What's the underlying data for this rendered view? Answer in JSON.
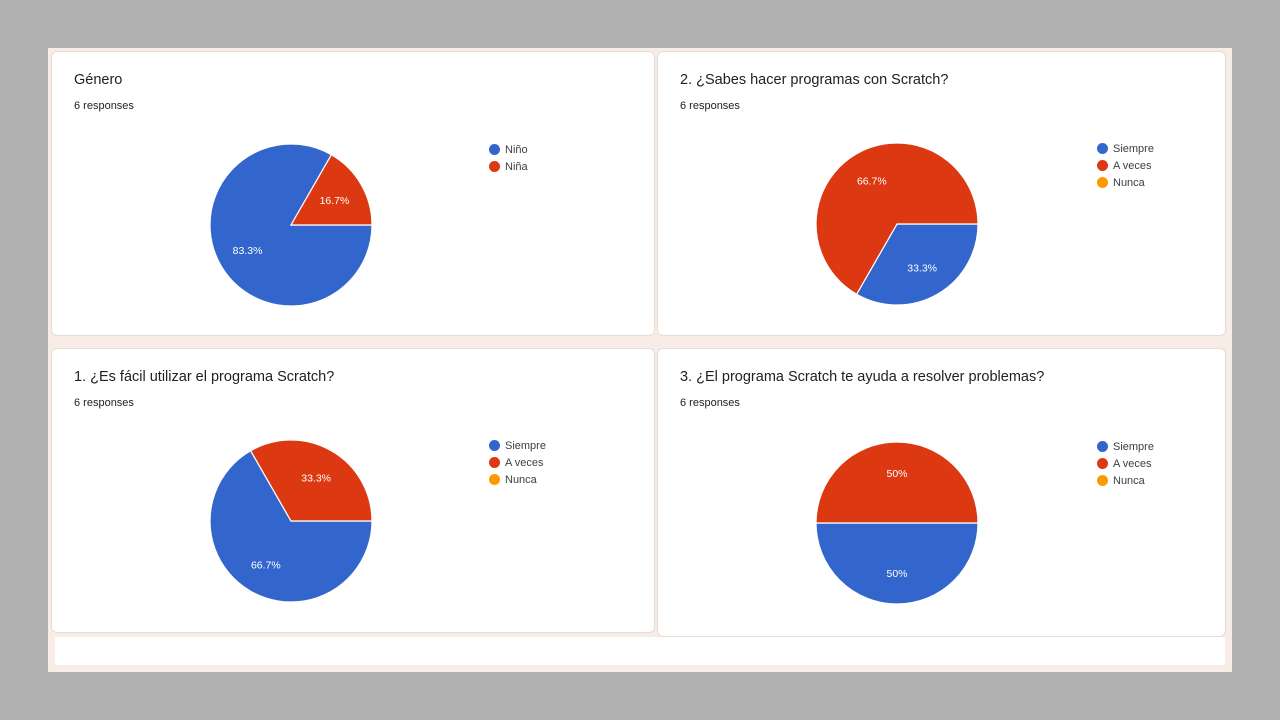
{
  "chart_data": [
    {
      "type": "pie",
      "title": "Género",
      "subtitle": "6 responses",
      "categories": [
        "Niño",
        "Niña"
      ],
      "values": [
        83.3,
        16.7
      ],
      "labels": [
        "83.3%",
        "16.7%"
      ],
      "colors": [
        "#3366cc",
        "#dc3912"
      ],
      "legend": "right"
    },
    {
      "type": "pie",
      "title": "2. ¿Sabes hacer programas con Scratch?",
      "subtitle": "6 responses",
      "categories": [
        "Siempre",
        "A veces",
        "Nunca"
      ],
      "values": [
        33.3,
        66.7,
        0
      ],
      "labels": [
        "33.3%",
        "66.7%",
        ""
      ],
      "colors": [
        "#3366cc",
        "#dc3912",
        "#ff9900"
      ],
      "legend": "right"
    },
    {
      "type": "pie",
      "title": "1. ¿Es fácil utilizar el programa Scratch?",
      "subtitle": "6 responses",
      "categories": [
        "Siempre",
        "A veces",
        "Nunca"
      ],
      "values": [
        66.7,
        33.3,
        0
      ],
      "labels": [
        "66.7%",
        "33.3%",
        ""
      ],
      "colors": [
        "#3366cc",
        "#dc3912",
        "#ff9900"
      ],
      "legend": "right"
    },
    {
      "type": "pie",
      "title": "3. ¿El programa Scratch te ayuda a resolver problemas?",
      "subtitle": "6 responses",
      "categories": [
        "Siempre",
        "A veces",
        "Nunca"
      ],
      "values": [
        50,
        50,
        0
      ],
      "labels": [
        "50%",
        "50%",
        ""
      ],
      "colors": [
        "#3366cc",
        "#dc3912",
        "#ff9900"
      ],
      "legend": "right"
    }
  ]
}
